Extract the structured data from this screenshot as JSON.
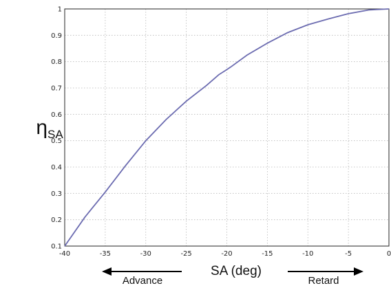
{
  "chart_data": {
    "type": "line",
    "title": "",
    "ylabel": {
      "main": "η",
      "sub": "SA"
    },
    "xlabel": "SA (deg)",
    "xlim": [
      -40,
      0
    ],
    "ylim": [
      0.1,
      1
    ],
    "xticks": [
      -40,
      -35,
      -30,
      -25,
      -20,
      -15,
      -10,
      -5,
      0
    ],
    "yticks": [
      0.1,
      0.2,
      0.3,
      0.4,
      0.5,
      0.6,
      0.7,
      0.8,
      0.9,
      1
    ],
    "grid": true,
    "series": [
      {
        "color": "#6b6bb0",
        "x": [
          -40,
          -37.5,
          -35,
          -32.5,
          -30,
          -27.5,
          -25,
          -22.5,
          -21,
          -20,
          -19.5,
          -17.5,
          -15,
          -12.5,
          -10,
          -7.5,
          -5,
          -2.5,
          0
        ],
        "y": [
          0.1,
          0.21,
          0.305,
          0.405,
          0.5,
          0.58,
          0.65,
          0.71,
          0.75,
          0.77,
          0.78,
          0.825,
          0.87,
          0.91,
          0.94,
          0.962,
          0.982,
          0.996,
          1.0
        ]
      }
    ],
    "annotations": {
      "advance": "Advance",
      "retard": "Retard"
    }
  }
}
